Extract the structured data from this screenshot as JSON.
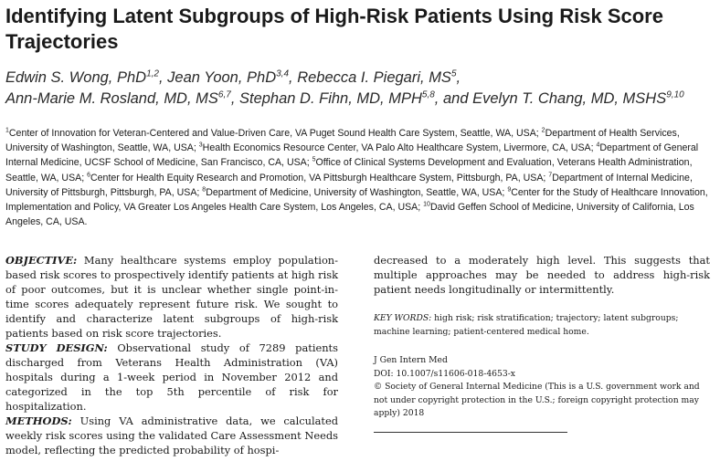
{
  "title": "Identifying Latent Subgroups of High-Risk Patients Using Risk Score Trajectories",
  "authors": [
    {
      "name": "Edwin S. Wong, PhD",
      "aff": "1,2",
      "sep": ", "
    },
    {
      "name": "Jean Yoon, PhD",
      "aff": "3,4",
      "sep": ", "
    },
    {
      "name": "Rebecca I. Piegari, MS",
      "aff": "5",
      "sep": ","
    },
    {
      "name": "Ann-Marie M. Rosland, MD, MS",
      "aff": "6,7",
      "sep": ", "
    },
    {
      "name": "Stephan D. Fihn, MD, MPH",
      "aff": "5,8",
      "sep": ", and "
    },
    {
      "name": "Evelyn T. Chang, MD, MSHS",
      "aff": "9,10",
      "sep": ""
    }
  ],
  "affiliations": [
    {
      "num": "1",
      "text": "Center of Innovation for Veteran-Centered and Value-Driven Care, VA Puget Sound Health Care System, Seattle, WA, USA; "
    },
    {
      "num": "2",
      "text": "Department of Health Services, University of Washington, Seattle, WA, USA; "
    },
    {
      "num": "3",
      "text": "Health Economics Resource Center, VA Palo Alto Healthcare System, Livermore, CA, USA; "
    },
    {
      "num": "4",
      "text": "Department of General Internal Medicine, UCSF School of Medicine, San Francisco, CA, USA; "
    },
    {
      "num": "5",
      "text": "Office of Clinical Systems Development and Evaluation, Veterans Health Administration, Seattle, WA, USA; "
    },
    {
      "num": "6",
      "text": "Center for Health Equity Research and Promotion, VA Pittsburgh Healthcare System, Pittsburgh, PA, USA; "
    },
    {
      "num": "7",
      "text": "Department of Internal Medicine, University of Pittsburgh, Pittsburgh, PA, USA; "
    },
    {
      "num": "8",
      "text": "Department of Medicine, University of Washington, Seattle, WA, USA; "
    },
    {
      "num": "9",
      "text": "Center for the Study of Healthcare Innovation, Implementation and Policy, VA Greater Los Angeles Health Care System, Los Angeles, CA, USA; "
    },
    {
      "num": "10",
      "text": "David Geffen School of Medicine, University of California, Los Angeles, CA, USA."
    }
  ],
  "abstract": [
    {
      "label": "OBJECTIVE:",
      "text": " Many healthcare systems employ population-based risk scores to prospectively identify patients at high risk of poor outcomes, but it is unclear whether single point-in-time scores adequately represent future risk. We sought to identify and characterize latent subgroups of high-risk patients based on risk score trajectories."
    },
    {
      "label": "STUDY DESIGN:",
      "text": " Observational study of 7289 patients discharged from Veterans Health Administration (VA) hospitals during a 1-week period in November 2012 and categorized in the top 5th percentile of risk for hospitalization."
    },
    {
      "label": "METHODS:",
      "text": " Using VA administrative data, we calculated weekly risk scores using the validated Care Assessment Needs model, reflecting the predicted probability of hospi-"
    }
  ],
  "continuation": "decreased to a moderately high level. This suggests that multiple approaches may be needed to address high-risk patient needs longitudinally or intermittently.",
  "keywords": {
    "label": "KEY WORDS:",
    "text": " high risk; risk stratification; trajectory; latent subgroups; machine learning; patient-centered medical home."
  },
  "publication": {
    "journal": "J Gen Intern Med",
    "doi": "DOI: 10.1007/s11606-018-4653-x",
    "copyright": "© Society of General Internal Medicine (This is a U.S. government work and not under copyright protection in the U.S.; foreign copyright protection may apply) 2018"
  }
}
